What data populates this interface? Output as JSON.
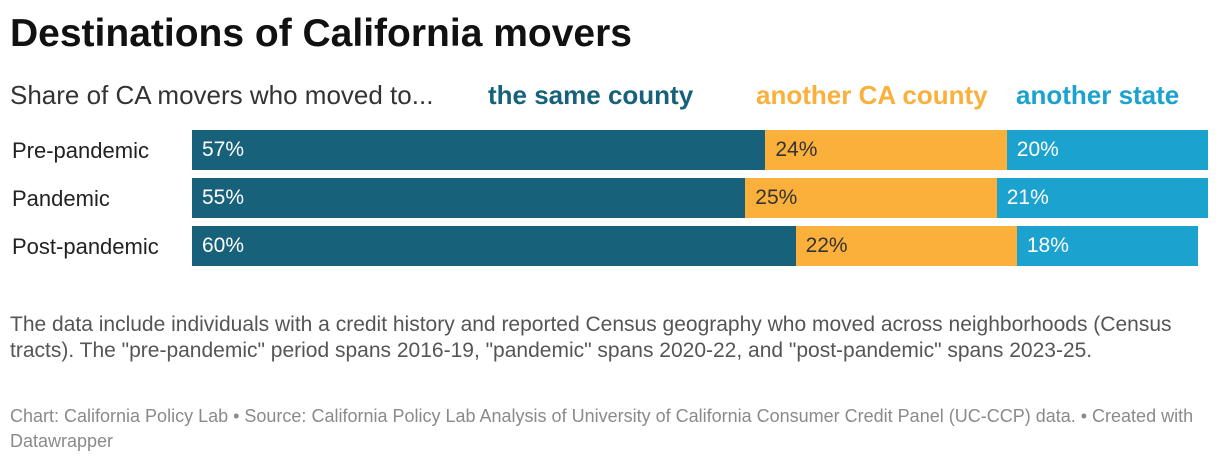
{
  "chart_data": {
    "type": "bar",
    "orientation": "horizontal",
    "stacked": true,
    "title": "Destinations of California movers",
    "subtitle": "Share of CA movers who moved to...",
    "categories": [
      "Pre-pandemic",
      "Pandemic",
      "Post-pandemic"
    ],
    "series": [
      {
        "name": "the same county",
        "color": "#17617b",
        "values": [
          57,
          55,
          60
        ],
        "labels": [
          "57%",
          "55%",
          "60%"
        ]
      },
      {
        "name": "another CA county",
        "color": "#fbb03b",
        "values": [
          24,
          25,
          22
        ],
        "labels": [
          "24%",
          "25%",
          "22%"
        ]
      },
      {
        "name": "another state",
        "color": "#1ba2ce",
        "values": [
          20,
          21,
          18
        ],
        "labels": [
          "20%",
          "21%",
          "18%"
        ]
      }
    ],
    "xlim": [
      0,
      101
    ],
    "legend_position": "top"
  },
  "notes": "The data include individuals with a credit history and reported Census geography who moved across neighborhoods (Census tracts). The \"pre-pandemic\" period spans 2016-19, \"pandemic\" spans 2020-22, and \"post-pandemic\" spans 2023-25.",
  "footer": "Chart: California Policy Lab • Source: California Policy Lab Analysis of University of California Consumer Credit Panel (UC-CCP) data.  • Created with Datawrapper"
}
